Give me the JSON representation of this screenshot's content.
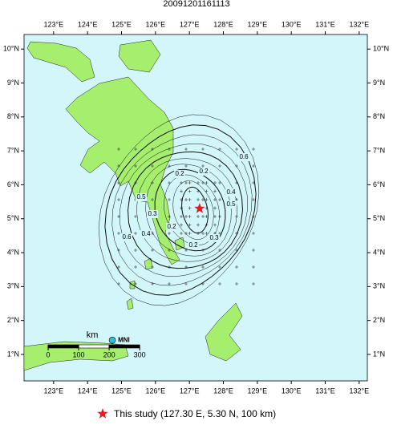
{
  "title": "20091201161113",
  "map": {
    "lonlim": [
      122.13,
      132.24
    ],
    "latlim": [
      0.22,
      10.43
    ],
    "lonticks": [
      {
        "value": 123,
        "label": "123°E"
      },
      {
        "value": 124,
        "label": "124°E"
      },
      {
        "value": 125,
        "label": "125°E"
      },
      {
        "value": 126,
        "label": "126°E"
      },
      {
        "value": 127,
        "label": "127°E"
      },
      {
        "value": 128,
        "label": "128°E"
      },
      {
        "value": 129,
        "label": "129°E"
      },
      {
        "value": 130,
        "label": "130°E"
      },
      {
        "value": 131,
        "label": "131°E"
      },
      {
        "value": 132,
        "label": "132°E"
      }
    ],
    "latticks": [
      {
        "value": 1,
        "label": "1°N"
      },
      {
        "value": 2,
        "label": "2°N"
      },
      {
        "value": 3,
        "label": "3°N"
      },
      {
        "value": 4,
        "label": "4°N"
      },
      {
        "value": 5,
        "label": "5°N"
      },
      {
        "value": 6,
        "label": "6°N"
      },
      {
        "value": 7,
        "label": "7°N"
      },
      {
        "value": 8,
        "label": "8°N"
      },
      {
        "value": 9,
        "label": "9°N"
      },
      {
        "value": 10,
        "label": "10°N"
      }
    ],
    "contour_labels": [
      0.2,
      0.2,
      0.6,
      0.4,
      0.5,
      0.5,
      0.3,
      0.4,
      0.6,
      0.2,
      0.2,
      0.3
    ],
    "epicenter": {
      "lon": 127.3,
      "lat": 5.3,
      "color": "#e8191f"
    },
    "station": {
      "name": "MNI",
      "lon": 124.73,
      "lat": 1.42,
      "color": "#2fc0e0"
    },
    "scale_bar": {
      "unit": "km",
      "ticks": [
        0,
        100,
        200,
        300
      ]
    },
    "legend": "This study (127.30 E, 5.30 N, 100 km)"
  }
}
